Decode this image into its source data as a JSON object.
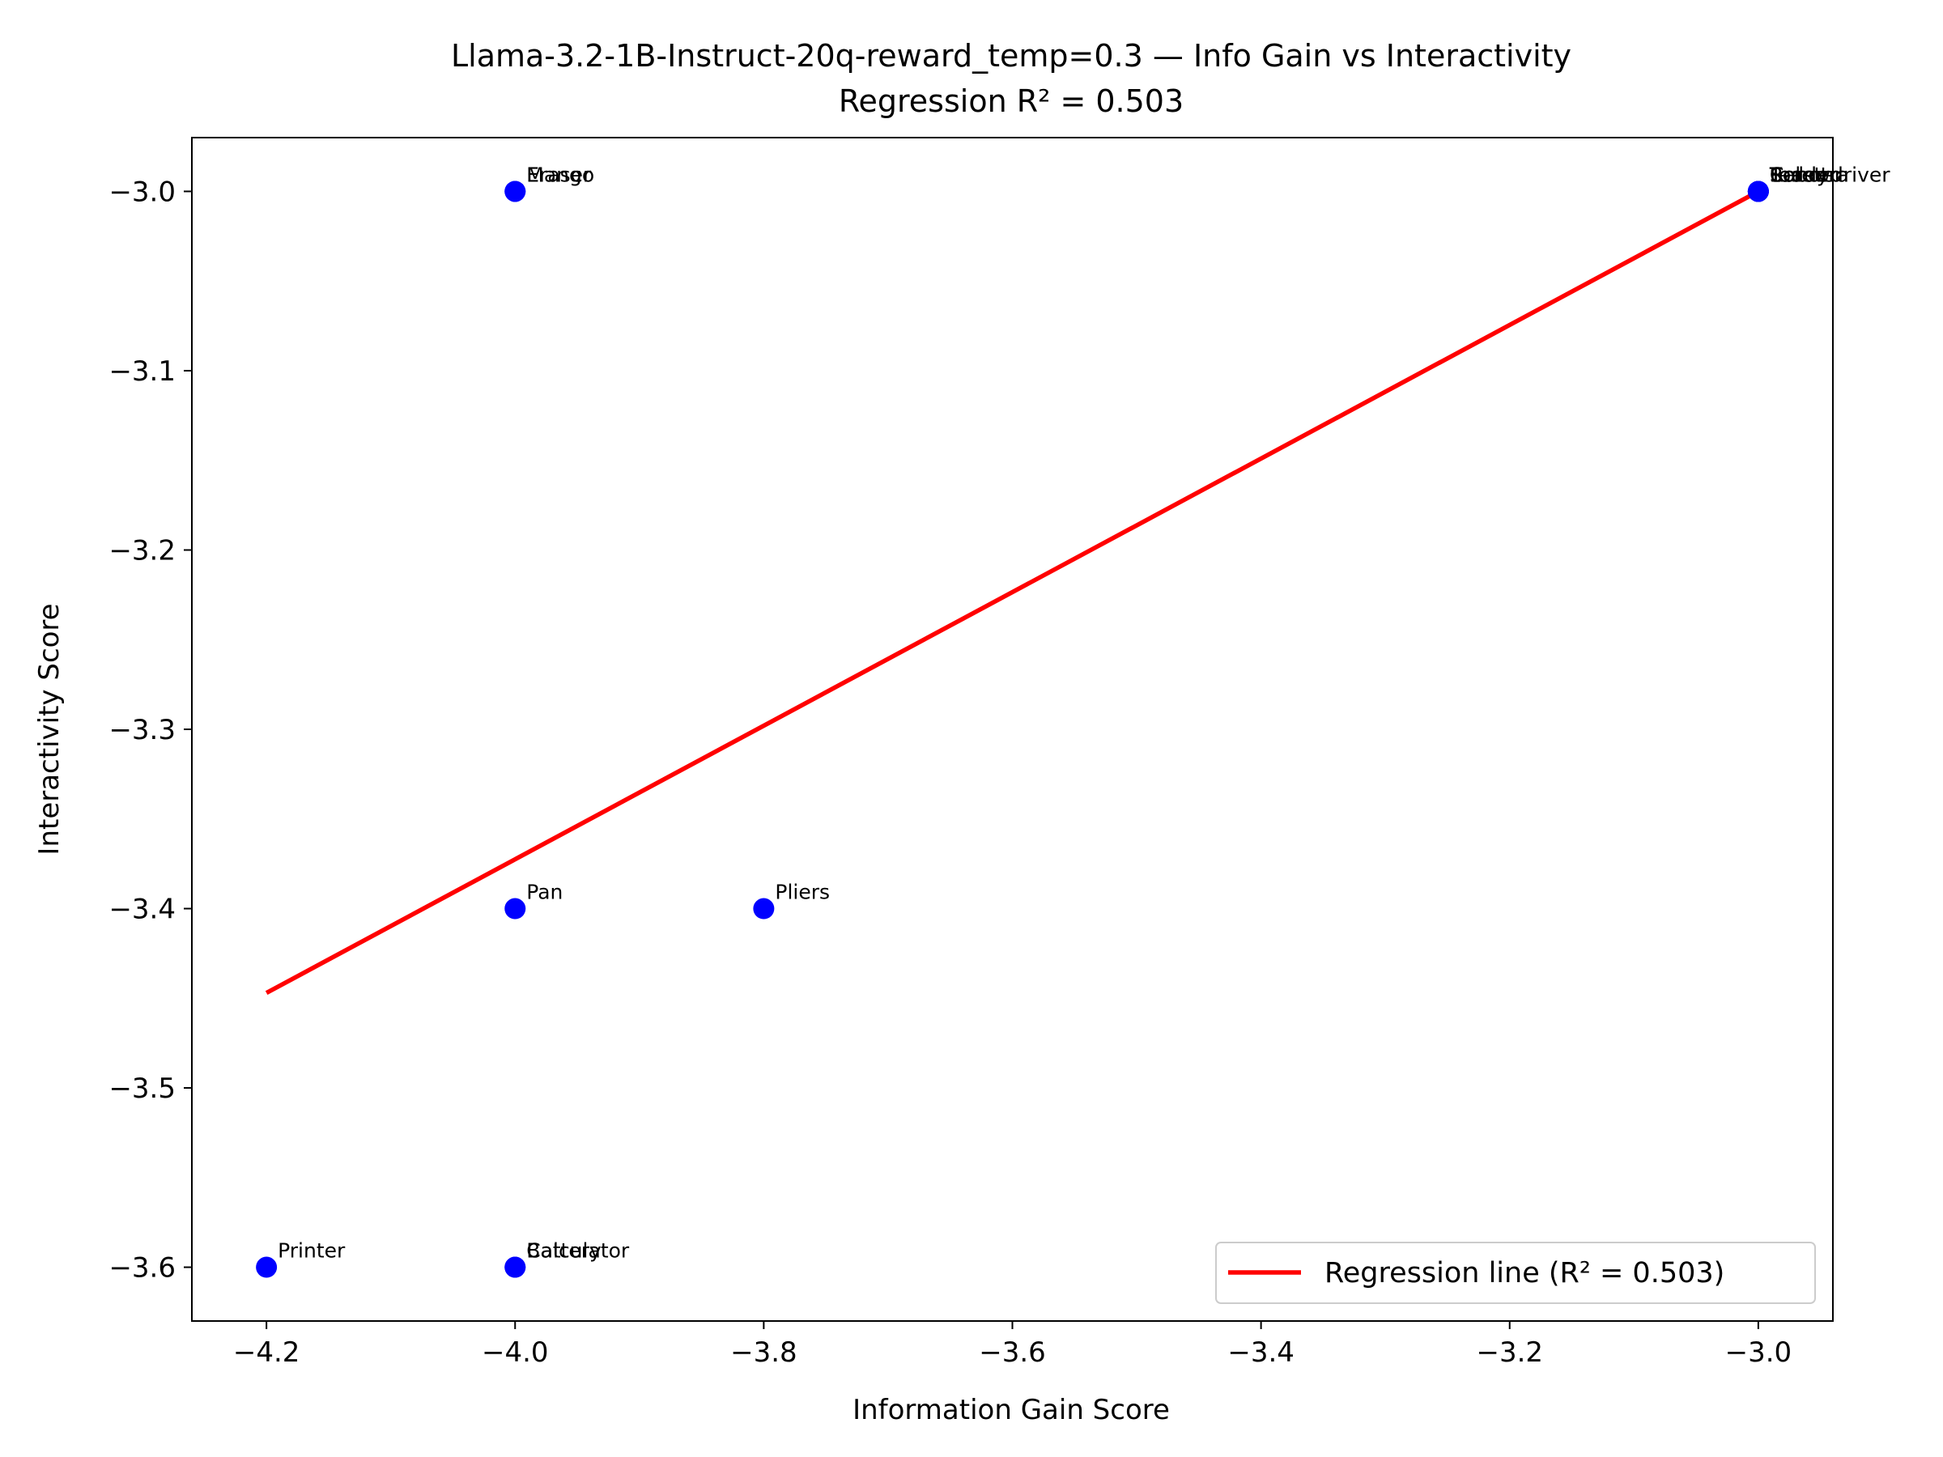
{
  "chart_data": {
    "type": "scatter",
    "title": "Llama-3.2-1B-Instruct-20q-reward_temp=0.3 — Info Gain vs Interactivity",
    "subtitle": "Regression R² = 0.503",
    "xlabel": "Information Gain Score",
    "ylabel": "Interactivity Score",
    "xlim": [
      -4.26,
      -2.94
    ],
    "ylim": [
      -3.63,
      -2.97
    ],
    "xticks": [
      -4.2,
      -4.0,
      -3.8,
      -3.6,
      -3.4,
      -3.2,
      -3.0
    ],
    "yticks": [
      -3.6,
      -3.5,
      -3.4,
      -3.3,
      -3.2,
      -3.1,
      -3.0
    ],
    "xtick_labels": [
      "−4.2",
      "−4.0",
      "−3.8",
      "−3.6",
      "−3.4",
      "−3.2",
      "−3.0"
    ],
    "ytick_labels": [
      "−3.6",
      "−3.5",
      "−3.4",
      "−3.3",
      "−3.2",
      "−3.1",
      "−3.0"
    ],
    "grid": false,
    "legend_position": "lower-right",
    "point_color": "#0000ff",
    "line_color": "#ff0000",
    "points": [
      {
        "label": "Mango",
        "x": -4.0,
        "y": -3.0
      },
      {
        "label": "Eraser",
        "x": -4.0,
        "y": -3.0
      },
      {
        "label": "Pan",
        "x": -4.0,
        "y": -3.4
      },
      {
        "label": "Pliers",
        "x": -3.8,
        "y": -3.4
      },
      {
        "label": "Printer",
        "x": -4.2,
        "y": -3.6
      },
      {
        "label": "Calculator",
        "x": -4.0,
        "y": -3.6
      },
      {
        "label": "Battery",
        "x": -4.0,
        "y": -3.6
      },
      {
        "label": "Screwdriver",
        "x": -3.0,
        "y": -3.0
      },
      {
        "label": "Toaster",
        "x": -3.0,
        "y": -3.0
      },
      {
        "label": "Robot",
        "x": -3.0,
        "y": -3.0
      },
      {
        "label": "Camera",
        "x": -3.0,
        "y": -3.0
      },
      {
        "label": "Teddy",
        "x": -3.0,
        "y": -3.0
      }
    ],
    "regression": {
      "name": "Regression line (R² = 0.503)",
      "x": [
        -4.2,
        -3.0
      ],
      "y": [
        -3.447,
        -3.0
      ]
    }
  }
}
